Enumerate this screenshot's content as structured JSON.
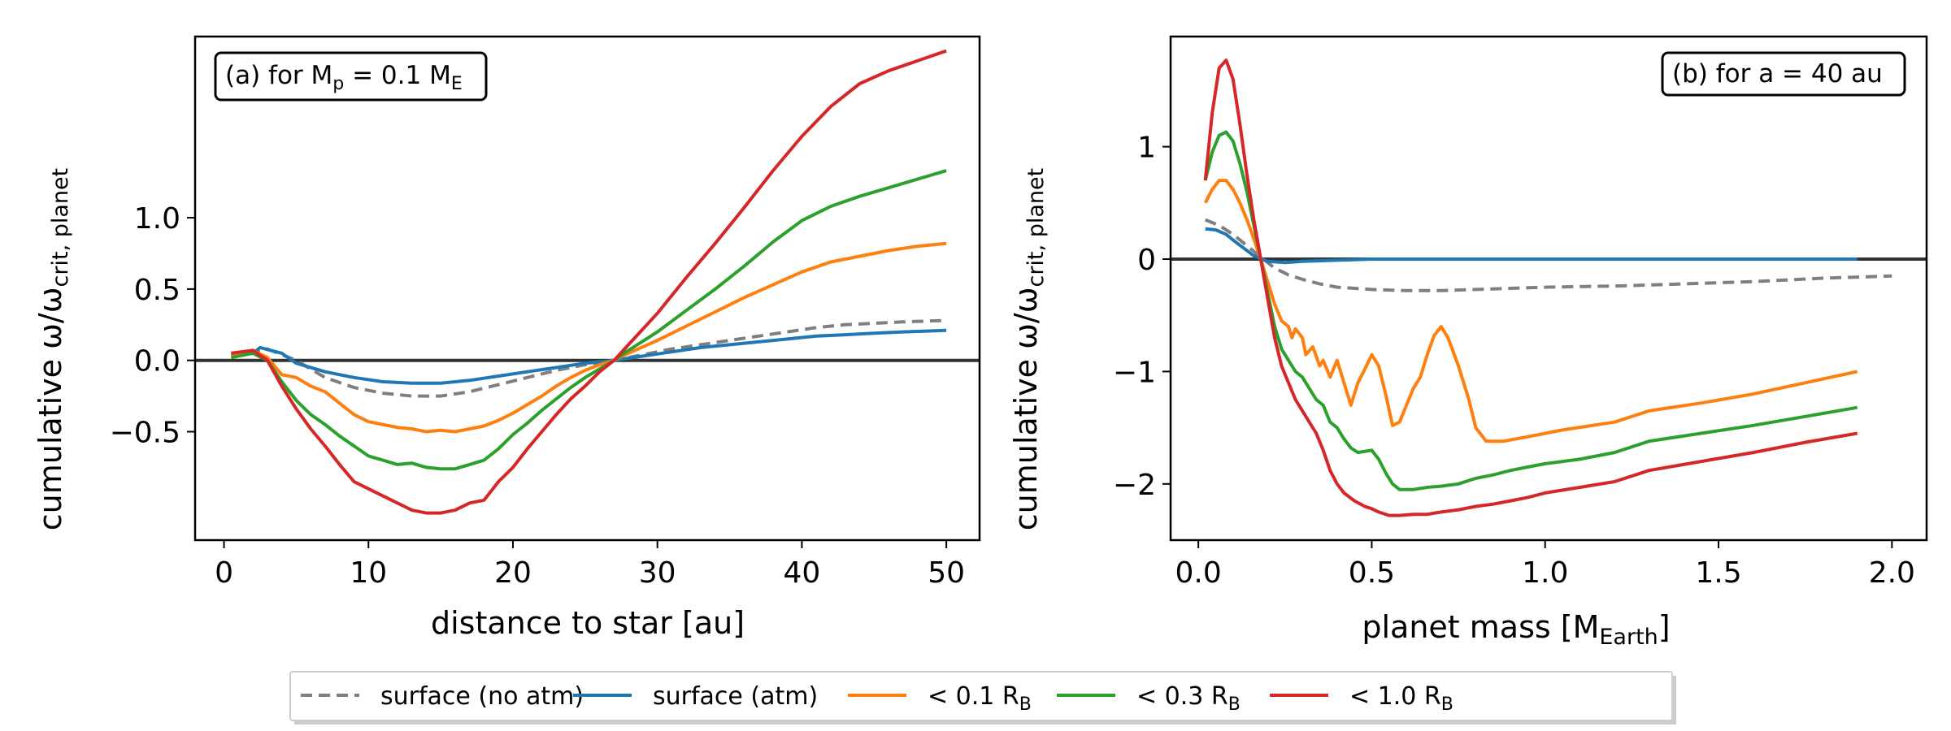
{
  "legend": {
    "items": [
      {
        "label": "surface (no atm)",
        "color": "#7f7f7f",
        "dash": true
      },
      {
        "label": "surface (atm)",
        "color": "#1f77b4",
        "dash": false
      },
      {
        "label": "< 0.1 R",
        "sub": "B",
        "color": "#ff7f0e",
        "dash": false
      },
      {
        "label": "< 0.3 R",
        "sub": "B",
        "color": "#2ca02c",
        "dash": false
      },
      {
        "label": "< 1.0 R",
        "sub": "B",
        "color": "#d62728",
        "dash": false
      }
    ]
  },
  "chart_data": [
    {
      "type": "line",
      "panel_label": {
        "text": "(a) for M",
        "sub1": "p",
        "mid": " = 0.1 M",
        "sub2": "E"
      },
      "xlabel": "distance to star [au]",
      "ylabel": {
        "text": "cumulative ω/ω",
        "sub": "crit, planet"
      },
      "xlim": [
        -2,
        52.3
      ],
      "ylim": [
        -1.26,
        2.27
      ],
      "xticks": [
        0,
        10,
        20,
        30,
        40,
        50
      ],
      "xtick_labels": [
        "0",
        "10",
        "20",
        "30",
        "40",
        "50"
      ],
      "yticks": [
        -0.5,
        0.0,
        0.5,
        1.0
      ],
      "ytick_labels": [
        "−0.5",
        "0.0",
        "0.5",
        "1.0"
      ],
      "hline": 0,
      "series": [
        {
          "name": "surface (no atm)",
          "color": "#7f7f7f",
          "dash": true,
          "x": [
            0.5,
            2,
            3,
            5,
            7,
            9,
            11,
            13,
            15,
            17,
            19,
            21,
            23,
            25,
            27,
            29,
            31,
            33,
            35,
            37,
            39,
            41,
            43,
            45,
            47,
            50
          ],
          "y": [
            0.03,
            0.06,
            0.08,
            0.0,
            -0.12,
            -0.19,
            -0.23,
            -0.25,
            -0.25,
            -0.22,
            -0.17,
            -0.12,
            -0.07,
            -0.03,
            0.0,
            0.04,
            0.08,
            0.11,
            0.14,
            0.17,
            0.2,
            0.23,
            0.25,
            0.26,
            0.27,
            0.28
          ]
        },
        {
          "name": "surface (atm)",
          "color": "#1f77b4",
          "dash": false,
          "x": [
            0.5,
            2,
            2.5,
            4,
            5,
            7,
            9,
            11,
            13,
            15,
            17,
            19,
            21,
            23,
            25,
            27,
            29,
            31,
            33,
            35,
            37,
            39,
            41,
            43,
            45,
            47,
            50
          ],
          "y": [
            0.03,
            0.05,
            0.09,
            0.05,
            -0.02,
            -0.08,
            -0.12,
            -0.15,
            -0.16,
            -0.16,
            -0.14,
            -0.11,
            -0.08,
            -0.05,
            -0.02,
            0.0,
            0.03,
            0.06,
            0.09,
            0.11,
            0.13,
            0.15,
            0.17,
            0.18,
            0.19,
            0.2,
            0.21
          ]
        },
        {
          "name": "< 0.1 RB",
          "color": "#ff7f0e",
          "dash": false,
          "x": [
            0.5,
            2,
            3,
            4,
            5,
            6,
            7,
            8,
            9,
            10,
            11,
            12,
            13,
            14,
            15,
            16,
            17,
            18,
            19,
            20,
            21,
            22,
            23,
            24,
            25,
            26,
            27,
            28,
            30,
            32,
            34,
            36,
            38,
            40,
            42,
            44,
            46,
            48,
            50
          ],
          "y": [
            0.03,
            0.07,
            0.02,
            -0.1,
            -0.12,
            -0.18,
            -0.22,
            -0.3,
            -0.38,
            -0.43,
            -0.45,
            -0.47,
            -0.48,
            -0.5,
            -0.49,
            -0.5,
            -0.48,
            -0.46,
            -0.42,
            -0.37,
            -0.31,
            -0.25,
            -0.18,
            -0.12,
            -0.07,
            -0.03,
            0.0,
            0.05,
            0.14,
            0.24,
            0.34,
            0.44,
            0.53,
            0.62,
            0.69,
            0.73,
            0.77,
            0.8,
            0.82
          ]
        },
        {
          "name": "< 0.3 RB",
          "color": "#2ca02c",
          "dash": false,
          "x": [
            0.5,
            2,
            3,
            4,
            5,
            6,
            7,
            8,
            9,
            10,
            11,
            12,
            13,
            14,
            15,
            16,
            17,
            18,
            19,
            20,
            21,
            22,
            23,
            24,
            25,
            26,
            27,
            28,
            30,
            32,
            34,
            36,
            38,
            40,
            42,
            44,
            46,
            48,
            50
          ],
          "y": [
            0.02,
            0.05,
            0.0,
            -0.15,
            -0.28,
            -0.38,
            -0.45,
            -0.53,
            -0.6,
            -0.67,
            -0.7,
            -0.73,
            -0.72,
            -0.75,
            -0.76,
            -0.76,
            -0.73,
            -0.7,
            -0.62,
            -0.52,
            -0.44,
            -0.35,
            -0.27,
            -0.19,
            -0.12,
            -0.06,
            0.0,
            0.07,
            0.2,
            0.35,
            0.5,
            0.66,
            0.83,
            0.98,
            1.08,
            1.15,
            1.21,
            1.27,
            1.33
          ]
        },
        {
          "name": "< 1.0 RB",
          "color": "#d62728",
          "dash": false,
          "x": [
            0.5,
            2,
            3,
            4,
            5,
            6,
            7,
            8,
            9,
            10,
            11,
            12,
            13,
            14,
            15,
            16,
            17,
            18,
            19,
            20,
            21,
            22,
            23,
            24,
            25,
            26,
            27,
            28,
            30,
            32,
            34,
            36,
            38,
            40,
            42,
            44,
            46,
            48,
            50
          ],
          "y": [
            0.05,
            0.07,
            0.0,
            -0.18,
            -0.34,
            -0.48,
            -0.6,
            -0.73,
            -0.85,
            -0.9,
            -0.95,
            -1.0,
            -1.05,
            -1.07,
            -1.07,
            -1.05,
            -1.0,
            -0.98,
            -0.85,
            -0.75,
            -0.62,
            -0.5,
            -0.38,
            -0.27,
            -0.18,
            -0.08,
            0.0,
            0.11,
            0.33,
            0.58,
            0.82,
            1.07,
            1.33,
            1.57,
            1.78,
            1.94,
            2.03,
            2.1,
            2.17
          ]
        }
      ]
    },
    {
      "type": "line",
      "panel_label": {
        "text": "(b) for a = 40 au"
      },
      "xlabel": {
        "text": "planet mass [M",
        "sub": "Earth",
        "tail": "]"
      },
      "ylabel": {
        "text": "cumulative ω/ω",
        "sub": "crit, planet"
      },
      "xlim": [
        -0.08,
        2.1
      ],
      "ylim": [
        -2.5,
        1.98
      ],
      "xticks": [
        0.0,
        0.5,
        1.0,
        1.5,
        2.0
      ],
      "xtick_labels": [
        "0.0",
        "0.5",
        "1.0",
        "1.5",
        "2.0"
      ],
      "yticks": [
        -2,
        -1,
        0,
        1
      ],
      "ytick_labels": [
        "−2",
        "−1",
        "0",
        "1"
      ],
      "hline": 0,
      "series": [
        {
          "name": "surface (no atm)",
          "color": "#7f7f7f",
          "dash": true,
          "x": [
            0.02,
            0.06,
            0.1,
            0.14,
            0.18,
            0.22,
            0.26,
            0.3,
            0.35,
            0.4,
            0.5,
            0.6,
            0.7,
            0.8,
            0.9,
            1.0,
            1.2,
            1.4,
            1.6,
            1.8,
            2.0
          ],
          "y": [
            0.35,
            0.3,
            0.22,
            0.12,
            0.02,
            -0.08,
            -0.14,
            -0.18,
            -0.22,
            -0.25,
            -0.27,
            -0.28,
            -0.28,
            -0.27,
            -0.26,
            -0.25,
            -0.24,
            -0.22,
            -0.2,
            -0.17,
            -0.15
          ]
        },
        {
          "name": "surface (atm)",
          "color": "#1f77b4",
          "dash": false,
          "x": [
            0.02,
            0.05,
            0.08,
            0.1,
            0.13,
            0.16,
            0.2,
            0.25,
            0.3,
            0.4,
            0.5,
            0.7,
            1.0,
            1.3,
            1.6,
            1.9
          ],
          "y": [
            0.27,
            0.26,
            0.22,
            0.17,
            0.1,
            0.03,
            -0.02,
            -0.03,
            -0.02,
            -0.01,
            0.0,
            0.0,
            0.0,
            0.0,
            0.0,
            0.0
          ]
        },
        {
          "name": "< 0.1 RB",
          "color": "#ff7f0e",
          "dash": false,
          "x": [
            0.02,
            0.04,
            0.06,
            0.08,
            0.1,
            0.12,
            0.14,
            0.16,
            0.18,
            0.2,
            0.22,
            0.24,
            0.26,
            0.27,
            0.28,
            0.3,
            0.31,
            0.33,
            0.35,
            0.36,
            0.38,
            0.4,
            0.42,
            0.44,
            0.46,
            0.48,
            0.5,
            0.52,
            0.54,
            0.56,
            0.58,
            0.6,
            0.62,
            0.64,
            0.66,
            0.68,
            0.7,
            0.72,
            0.75,
            0.78,
            0.8,
            0.83,
            0.88,
            0.95,
            1.05,
            1.2,
            1.3,
            1.45,
            1.6,
            1.75,
            1.9
          ],
          "y": [
            0.5,
            0.62,
            0.7,
            0.7,
            0.62,
            0.5,
            0.35,
            0.18,
            0.0,
            -0.2,
            -0.4,
            -0.55,
            -0.6,
            -0.7,
            -0.62,
            -0.7,
            -0.85,
            -0.78,
            -0.95,
            -0.9,
            -1.05,
            -0.9,
            -1.1,
            -1.3,
            -1.1,
            -0.98,
            -0.85,
            -0.95,
            -1.2,
            -1.48,
            -1.45,
            -1.3,
            -1.15,
            -1.05,
            -0.85,
            -0.68,
            -0.6,
            -0.7,
            -0.95,
            -1.25,
            -1.5,
            -1.62,
            -1.62,
            -1.58,
            -1.52,
            -1.45,
            -1.35,
            -1.28,
            -1.2,
            -1.1,
            -1.0
          ]
        },
        {
          "name": "< 0.3 RB",
          "color": "#2ca02c",
          "dash": false,
          "x": [
            0.02,
            0.04,
            0.06,
            0.08,
            0.1,
            0.12,
            0.14,
            0.16,
            0.18,
            0.2,
            0.22,
            0.24,
            0.26,
            0.28,
            0.3,
            0.32,
            0.34,
            0.36,
            0.38,
            0.4,
            0.42,
            0.44,
            0.46,
            0.5,
            0.52,
            0.54,
            0.56,
            0.58,
            0.62,
            0.66,
            0.7,
            0.75,
            0.8,
            0.85,
            0.9,
            0.95,
            1.0,
            1.1,
            1.2,
            1.3,
            1.45,
            1.6,
            1.75,
            1.9
          ],
          "y": [
            0.7,
            0.95,
            1.1,
            1.13,
            1.05,
            0.85,
            0.6,
            0.3,
            0.0,
            -0.3,
            -0.6,
            -0.8,
            -0.9,
            -1.0,
            -1.05,
            -1.15,
            -1.25,
            -1.3,
            -1.45,
            -1.5,
            -1.6,
            -1.68,
            -1.72,
            -1.7,
            -1.78,
            -1.9,
            -2.0,
            -2.05,
            -2.05,
            -2.03,
            -2.02,
            -2.0,
            -1.95,
            -1.92,
            -1.88,
            -1.85,
            -1.82,
            -1.78,
            -1.72,
            -1.62,
            -1.55,
            -1.48,
            -1.4,
            -1.32
          ]
        },
        {
          "name": "< 1.0 RB",
          "color": "#d62728",
          "dash": false,
          "x": [
            0.02,
            0.04,
            0.06,
            0.08,
            0.1,
            0.12,
            0.14,
            0.16,
            0.18,
            0.2,
            0.22,
            0.24,
            0.26,
            0.28,
            0.3,
            0.32,
            0.34,
            0.36,
            0.38,
            0.4,
            0.42,
            0.45,
            0.48,
            0.5,
            0.52,
            0.55,
            0.58,
            0.62,
            0.66,
            0.7,
            0.75,
            0.8,
            0.85,
            0.9,
            0.95,
            1.0,
            1.1,
            1.2,
            1.3,
            1.45,
            1.6,
            1.75,
            1.9
          ],
          "y": [
            0.7,
            1.3,
            1.7,
            1.77,
            1.6,
            1.2,
            0.75,
            0.35,
            0.0,
            -0.35,
            -0.7,
            -0.95,
            -1.1,
            -1.25,
            -1.35,
            -1.45,
            -1.55,
            -1.7,
            -1.88,
            -2.0,
            -2.08,
            -2.15,
            -2.2,
            -2.22,
            -2.25,
            -2.28,
            -2.28,
            -2.27,
            -2.27,
            -2.25,
            -2.23,
            -2.2,
            -2.18,
            -2.15,
            -2.12,
            -2.08,
            -2.03,
            -1.98,
            -1.88,
            -1.8,
            -1.72,
            -1.63,
            -1.55
          ]
        }
      ]
    }
  ]
}
